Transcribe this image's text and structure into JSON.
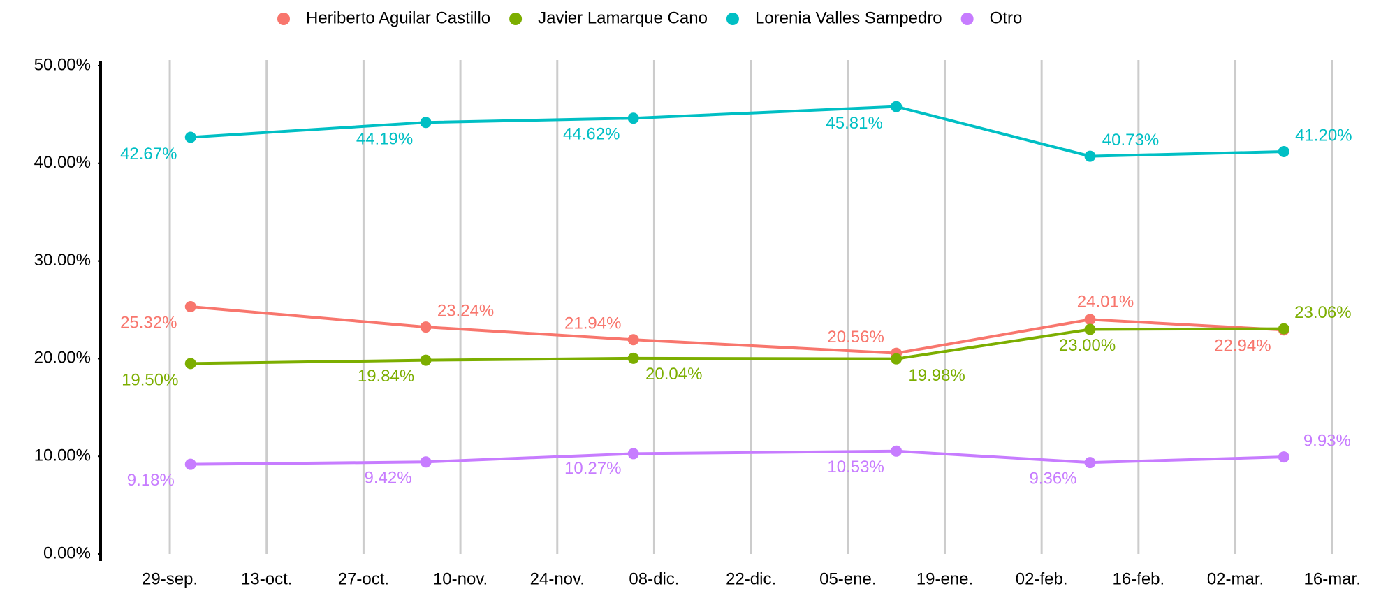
{
  "chart_data": {
    "type": "line",
    "x": [
      3,
      37,
      67,
      105,
      133,
      161
    ],
    "xlim": [
      -10,
      170
    ],
    "xticks": [
      {
        "value": 0,
        "label": "29-sep."
      },
      {
        "value": 14,
        "label": "13-oct."
      },
      {
        "value": 28,
        "label": "27-oct."
      },
      {
        "value": 42,
        "label": "10-nov."
      },
      {
        "value": 56,
        "label": "24-nov."
      },
      {
        "value": 70,
        "label": "08-dic."
      },
      {
        "value": 84,
        "label": "22-dic."
      },
      {
        "value": 98,
        "label": "05-ene."
      },
      {
        "value": 112,
        "label": "19-ene."
      },
      {
        "value": 126,
        "label": "02-feb."
      },
      {
        "value": 140,
        "label": "16-feb."
      },
      {
        "value": 154,
        "label": "02-mar."
      },
      {
        "value": 168,
        "label": "16-mar."
      }
    ],
    "ylim": [
      0,
      50
    ],
    "yticks": [
      {
        "value": 0,
        "label": "0.00%"
      },
      {
        "value": 10,
        "label": "10.00%"
      },
      {
        "value": 20,
        "label": "20.00%"
      },
      {
        "value": 30,
        "label": "30.00%"
      },
      {
        "value": 40,
        "label": "40.00%"
      },
      {
        "value": 50,
        "label": "50.00%"
      }
    ],
    "grid": true,
    "series": [
      {
        "name": "Heriberto Aguilar Castillo",
        "color": "#F8766D",
        "values": [
          25.32,
          23.24,
          21.94,
          20.56,
          24.01,
          22.94
        ],
        "value_labels": [
          "25.32%",
          "23.24%",
          "21.94%",
          "20.56%",
          "24.01%",
          "22.94%"
        ]
      },
      {
        "name": "Javier Lamarque Cano",
        "color": "#7CAE00",
        "values": [
          19.5,
          19.84,
          20.04,
          19.98,
          23.0,
          23.06
        ],
        "value_labels": [
          "19.50%",
          "19.84%",
          "20.04%",
          "19.98%",
          "23.00%",
          "23.06%"
        ]
      },
      {
        "name": "Lorenia Valles Sampedro",
        "color": "#00BFC4",
        "values": [
          42.67,
          44.19,
          44.62,
          45.81,
          40.73,
          41.2
        ],
        "value_labels": [
          "42.67%",
          "44.19%",
          "44.62%",
          "45.81%",
          "40.73%",
          "41.20%"
        ]
      },
      {
        "name": "Otro",
        "color": "#C77CFF",
        "values": [
          9.18,
          9.42,
          10.27,
          10.53,
          9.36,
          9.93
        ],
        "value_labels": [
          "9.18%",
          "9.42%",
          "10.27%",
          "10.53%",
          "9.36%",
          "9.93%"
        ]
      }
    ]
  }
}
